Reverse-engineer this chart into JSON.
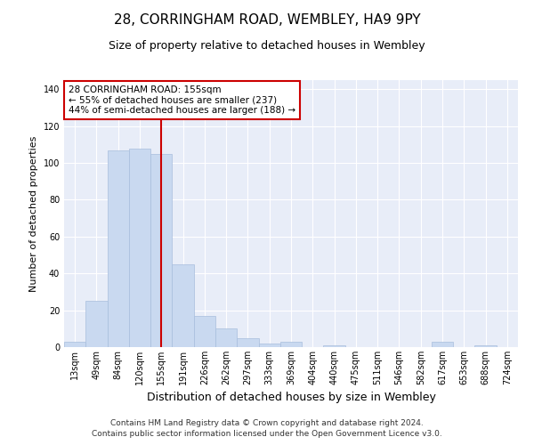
{
  "title": "28, CORRINGHAM ROAD, WEMBLEY, HA9 9PY",
  "subtitle": "Size of property relative to detached houses in Wembley",
  "xlabel": "Distribution of detached houses by size in Wembley",
  "ylabel": "Number of detached properties",
  "categories": [
    "13sqm",
    "49sqm",
    "84sqm",
    "120sqm",
    "155sqm",
    "191sqm",
    "226sqm",
    "262sqm",
    "297sqm",
    "333sqm",
    "369sqm",
    "404sqm",
    "440sqm",
    "475sqm",
    "511sqm",
    "546sqm",
    "582sqm",
    "617sqm",
    "653sqm",
    "688sqm",
    "724sqm"
  ],
  "values": [
    3,
    25,
    107,
    108,
    105,
    45,
    17,
    10,
    5,
    2,
    3,
    0,
    1,
    0,
    0,
    0,
    0,
    3,
    0,
    1,
    0
  ],
  "bar_color": "#c9d9f0",
  "bar_edge_color": "#a8bedd",
  "vline_x": 4,
  "vline_color": "#cc0000",
  "annotation_text": "28 CORRINGHAM ROAD: 155sqm\n← 55% of detached houses are smaller (237)\n44% of semi-detached houses are larger (188) →",
  "annotation_box_color": "#ffffff",
  "annotation_box_edge_color": "#cc0000",
  "ylim": [
    0,
    145
  ],
  "yticks": [
    0,
    20,
    40,
    60,
    80,
    100,
    120,
    140
  ],
  "background_color": "#e8edf8",
  "grid_color": "#ffffff",
  "title_fontsize": 11,
  "subtitle_fontsize": 9,
  "ylabel_fontsize": 8,
  "xlabel_fontsize": 9,
  "tick_fontsize": 7,
  "annotation_fontsize": 7.5,
  "footer_line1": "Contains HM Land Registry data © Crown copyright and database right 2024.",
  "footer_line2": "Contains public sector information licensed under the Open Government Licence v3.0.",
  "footer_fontsize": 6.5
}
